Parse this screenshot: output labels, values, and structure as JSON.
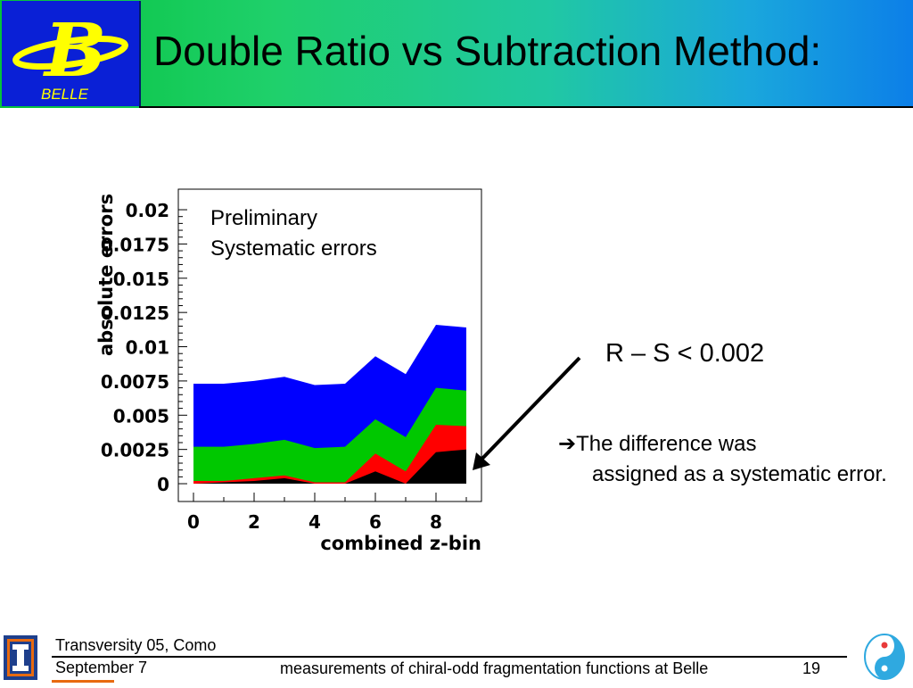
{
  "header": {
    "title": "Double Ratio vs Subtraction Method:",
    "logo_text": "BELLE",
    "logo_letter": "B"
  },
  "chart_data": {
    "type": "area",
    "stacked": false,
    "x": [
      0,
      1,
      2,
      3,
      4,
      5,
      6,
      7,
      8,
      9
    ],
    "xlim": [
      -0.5,
      9.5
    ],
    "ylim": [
      -0.0013,
      0.0215
    ],
    "xticks": [
      "0",
      "2",
      "4",
      "6",
      "8"
    ],
    "yticks": [
      "0",
      "0.0025",
      "0.005",
      "0.0075",
      "0.01",
      "0.0125",
      "0.015",
      "0.0175",
      "0.02"
    ],
    "xlabel": "combined z-bin",
    "ylabel": "absolute errors",
    "annotation_line1": "Preliminary",
    "annotation_line2": "Systematic errors",
    "series": [
      {
        "color": "#0000ff",
        "values": [
          0.0073,
          0.0073,
          0.0075,
          0.0078,
          0.0072,
          0.0073,
          0.0093,
          0.008,
          0.0116,
          0.0114
        ]
      },
      {
        "color": "#00c800",
        "values": [
          0.0027,
          0.0027,
          0.0029,
          0.0032,
          0.0026,
          0.0027,
          0.0047,
          0.0034,
          0.007,
          0.0068
        ]
      },
      {
        "color": "#ff0000",
        "values": [
          0.0002,
          0.0002,
          0.0004,
          0.0006,
          0.0001,
          0.0001,
          0.0022,
          0.0009,
          0.0043,
          0.0042
        ]
      },
      {
        "color": "#000000",
        "values": [
          0.0,
          0.0001,
          0.0002,
          0.0004,
          0.0,
          0.0,
          0.0009,
          0.0,
          0.0023,
          0.0025
        ]
      }
    ]
  },
  "main": {
    "rs_text": "R – S < 0.002",
    "bullet_arrow": "➔",
    "bullet_first": "The difference was",
    "bullet_rest": "assigned as a systematic error."
  },
  "footer": {
    "conference": "Transversity 05, Como",
    "date": "September 7",
    "center_text": "measurements of chiral-odd fragmentation functions at Belle",
    "page_number": "19"
  },
  "colors": {
    "logo_bg": "#0a20d6",
    "logo_letter": "#ffff00",
    "uiuc_blue": "#1e3f8c",
    "uiuc_orange": "#e86a10"
  }
}
